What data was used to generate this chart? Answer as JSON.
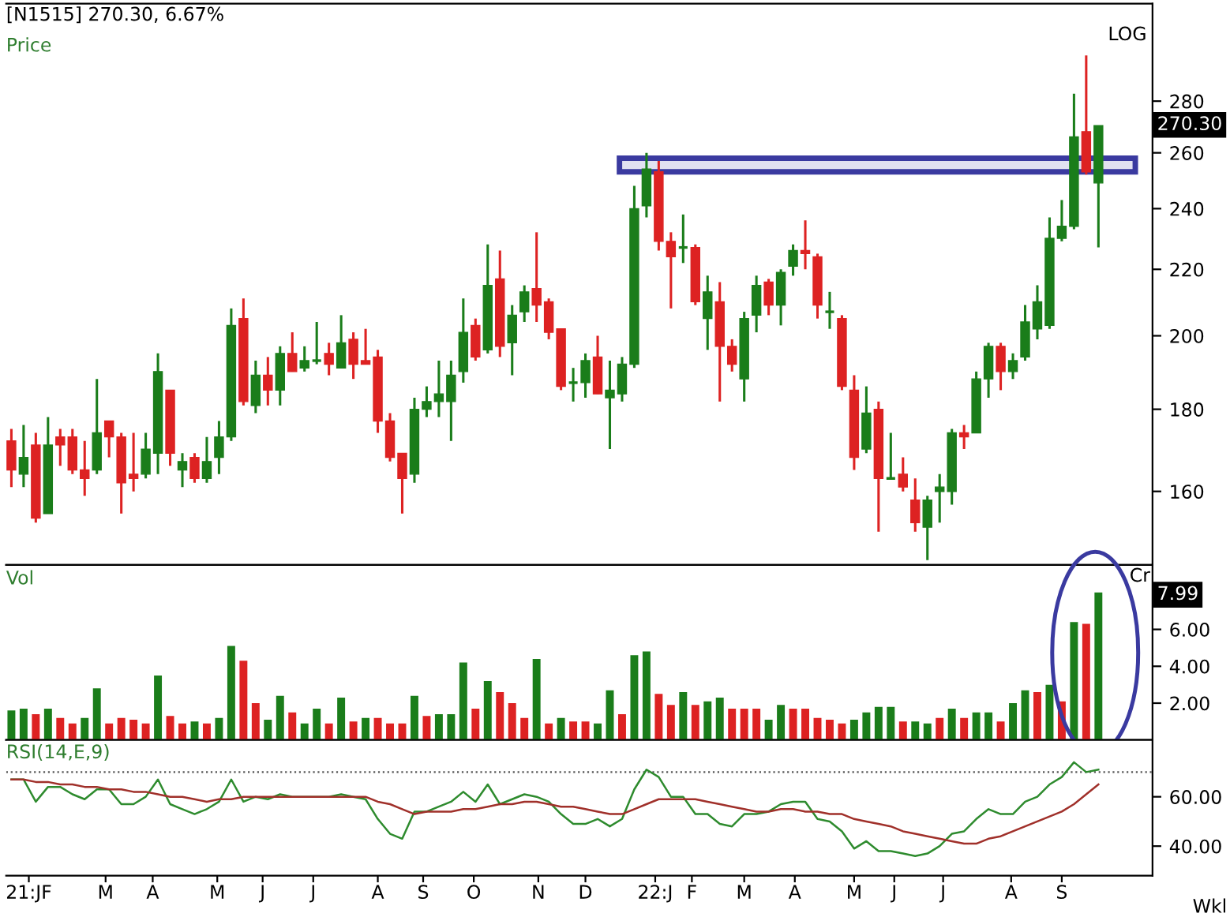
{
  "chart_data": [
    {
      "type": "candlestick",
      "title": "[N1515] 270.30, 6.67%",
      "annotations": [
        "Price",
        "LOG",
        "270.30"
      ],
      "x": [
        "2021-01-18",
        "2021-01-25",
        "2021-02-01",
        "2021-02-08",
        "2021-02-15",
        "2021-02-22",
        "2021-03-01",
        "2021-03-08",
        "2021-03-15",
        "2021-03-22",
        "2021-03-29",
        "2021-04-05",
        "2021-04-12",
        "2021-04-19",
        "2021-04-26",
        "2021-05-03",
        "2021-05-10",
        "2021-05-17",
        "2021-05-24",
        "2021-05-31",
        "2021-06-07",
        "2021-06-14",
        "2021-06-21",
        "2021-06-28",
        "2021-07-05",
        "2021-07-12",
        "2021-07-19",
        "2021-07-26",
        "2021-08-02",
        "2021-08-09",
        "2021-08-16",
        "2021-08-23",
        "2021-08-30",
        "2021-09-06",
        "2021-09-13",
        "2021-09-20",
        "2021-09-27",
        "2021-10-04",
        "2021-10-11",
        "2021-10-18",
        "2021-10-25",
        "2021-11-01",
        "2021-11-08",
        "2021-11-15",
        "2021-11-22",
        "2021-11-29",
        "2021-12-06",
        "2021-12-13",
        "2021-12-20",
        "2021-12-27",
        "2022-01-03",
        "2022-01-10",
        "2022-01-17",
        "2022-01-24",
        "2022-01-31",
        "2022-02-07",
        "2022-02-14",
        "2022-02-21",
        "2022-02-28",
        "2022-03-07",
        "2022-03-14",
        "2022-03-21",
        "2022-03-28",
        "2022-04-04",
        "2022-04-11",
        "2022-04-18",
        "2022-04-25",
        "2022-05-02",
        "2022-05-09",
        "2022-05-16",
        "2022-05-23",
        "2022-05-30",
        "2022-06-06",
        "2022-06-13",
        "2022-06-20",
        "2022-06-27",
        "2022-07-04",
        "2022-07-11",
        "2022-07-18",
        "2022-07-25",
        "2022-08-01",
        "2022-08-08",
        "2022-08-15",
        "2022-08-22",
        "2022-08-29",
        "2022-09-05",
        "2022-09-12",
        "2022-09-19",
        "2022-09-26",
        "2022-10-03"
      ],
      "ohlc": [
        [
          172,
          175,
          161,
          165
        ],
        [
          164,
          176,
          161,
          168
        ],
        [
          171,
          174,
          153,
          154
        ],
        [
          155,
          178,
          155,
          171
        ],
        [
          173,
          175,
          166,
          171
        ],
        [
          173,
          175,
          164,
          165
        ],
        [
          165,
          172,
          159,
          163
        ],
        [
          165,
          188,
          164,
          174
        ],
        [
          177,
          177,
          168,
          173
        ],
        [
          173,
          174,
          155,
          162
        ],
        [
          164,
          174,
          160,
          163
        ],
        [
          164,
          174,
          163,
          170
        ],
        [
          169,
          195,
          164,
          190
        ],
        [
          185,
          185,
          166,
          169
        ],
        [
          165,
          169,
          161,
          167
        ],
        [
          168,
          169,
          162,
          163
        ],
        [
          163,
          173,
          162,
          167
        ],
        [
          168,
          177,
          164,
          173
        ],
        [
          173,
          208,
          172,
          203
        ],
        [
          205,
          211,
          181,
          182
        ],
        [
          181,
          193,
          179,
          189
        ],
        [
          189,
          194,
          181,
          185
        ],
        [
          185,
          197,
          181,
          195
        ],
        [
          195,
          201,
          190,
          190
        ],
        [
          191,
          197,
          190,
          193
        ],
        [
          193,
          204,
          192,
          193
        ],
        [
          195,
          198,
          189,
          192
        ],
        [
          191,
          206,
          191,
          198
        ],
        [
          199,
          201,
          188,
          192
        ],
        [
          193,
          202,
          192,
          192
        ],
        [
          194,
          196,
          174,
          177
        ],
        [
          177,
          179,
          167,
          168
        ],
        [
          169,
          169,
          155,
          163
        ],
        [
          164,
          183,
          162,
          180
        ],
        [
          180,
          186,
          178,
          182
        ],
        [
          182,
          193,
          178,
          184
        ],
        [
          182,
          193,
          172,
          189
        ],
        [
          190,
          211,
          187,
          201
        ],
        [
          203,
          205,
          193,
          194
        ],
        [
          196,
          228,
          195,
          215
        ],
        [
          217,
          226,
          194,
          197
        ],
        [
          198,
          209,
          189,
          206
        ],
        [
          207,
          215,
          204,
          213
        ],
        [
          214,
          232,
          204,
          209
        ],
        [
          210,
          211,
          199,
          201
        ],
        [
          202,
          202,
          185,
          186
        ],
        [
          187,
          191,
          182,
          187
        ],
        [
          187,
          195,
          183,
          193
        ],
        [
          194,
          200,
          184,
          184
        ],
        [
          183,
          193,
          170,
          185
        ],
        [
          184,
          194,
          182,
          192
        ],
        [
          192,
          248,
          191,
          240
        ],
        [
          241,
          260,
          237,
          254
        ],
        [
          253,
          257,
          226,
          229
        ],
        [
          229,
          232,
          208,
          224
        ],
        [
          227,
          238,
          222,
          227
        ],
        [
          227,
          228,
          209,
          210
        ],
        [
          205,
          218,
          196,
          213
        ],
        [
          210,
          216,
          182,
          197
        ],
        [
          197,
          199,
          190,
          192
        ],
        [
          188,
          207,
          182,
          205
        ],
        [
          206,
          218,
          201,
          215
        ],
        [
          216,
          217,
          206,
          209
        ],
        [
          209,
          220,
          203,
          219
        ],
        [
          221,
          228,
          218,
          226
        ],
        [
          226,
          236,
          220,
          225
        ],
        [
          224,
          225,
          205,
          209
        ],
        [
          207,
          213,
          202,
          207
        ],
        [
          205,
          206,
          185,
          186
        ],
        [
          185,
          189,
          165,
          168
        ],
        [
          170,
          186,
          169,
          179
        ],
        [
          180,
          182,
          151,
          163
        ],
        [
          163,
          174,
          163,
          163
        ],
        [
          164,
          168,
          160,
          161
        ],
        [
          158,
          163,
          151,
          153
        ],
        [
          152,
          159,
          145,
          158
        ],
        [
          160,
          164,
          153,
          161
        ],
        [
          160,
          175,
          157,
          174
        ],
        [
          174,
          176,
          170,
          173
        ],
        [
          174,
          190,
          174,
          188
        ],
        [
          188,
          198,
          183,
          197
        ],
        [
          197,
          198,
          185,
          190
        ],
        [
          190,
          195,
          188,
          193
        ],
        [
          194,
          209,
          193,
          204
        ],
        [
          202,
          215,
          199,
          210
        ],
        [
          203,
          237,
          202,
          230
        ],
        [
          230,
          243,
          229,
          234
        ],
        [
          234,
          283,
          233,
          266
        ],
        [
          268,
          299,
          252,
          253
        ],
        [
          249,
          270.3,
          227,
          270.3
        ]
      ],
      "colors": [
        "#dd2222",
        "#1a7d1a",
        "#dd2222",
        "#1a7d1a",
        "#dd2222",
        "#dd2222",
        "#dd2222",
        "#1a7d1a",
        "#dd2222",
        "#dd2222",
        "#dd2222",
        "#1a7d1a",
        "#1a7d1a",
        "#dd2222",
        "#1a7d1a",
        "#dd2222",
        "#1a7d1a",
        "#1a7d1a",
        "#1a7d1a",
        "#dd2222",
        "#1a7d1a",
        "#dd2222",
        "#1a7d1a",
        "#dd2222",
        "#1a7d1a",
        "#1a7d1a",
        "#dd2222",
        "#1a7d1a",
        "#dd2222",
        "#dd2222",
        "#dd2222",
        "#dd2222",
        "#dd2222",
        "#1a7d1a",
        "#1a7d1a",
        "#1a7d1a",
        "#1a7d1a",
        "#1a7d1a",
        "#dd2222",
        "#1a7d1a",
        "#dd2222",
        "#1a7d1a",
        "#1a7d1a",
        "#dd2222",
        "#dd2222",
        "#dd2222",
        "#1a7d1a",
        "#1a7d1a",
        "#dd2222",
        "#1a7d1a",
        "#1a7d1a",
        "#1a7d1a",
        "#1a7d1a",
        "#dd2222",
        "#dd2222",
        "#1a7d1a",
        "#dd2222",
        "#1a7d1a",
        "#dd2222",
        "#dd2222",
        "#1a7d1a",
        "#1a7d1a",
        "#dd2222",
        "#1a7d1a",
        "#1a7d1a",
        "#dd2222",
        "#dd2222",
        "#1a7d1a",
        "#dd2222",
        "#dd2222",
        "#1a7d1a",
        "#dd2222",
        "#1a7d1a",
        "#dd2222",
        "#dd2222",
        "#1a7d1a",
        "#1a7d1a",
        "#1a7d1a",
        "#dd2222",
        "#1a7d1a",
        "#1a7d1a",
        "#dd2222",
        "#1a7d1a",
        "#1a7d1a",
        "#1a7d1a",
        "#1a7d1a",
        "#1a7d1a",
        "#1a7d1a",
        "#dd2222",
        "#1a7d1a"
      ],
      "xlim": [
        "2021-01-15",
        "2022-11-03"
      ],
      "log": "y",
      "ylim": [
        144,
        322
      ],
      "yticks": [
        160,
        180,
        200,
        220,
        240,
        260,
        280
      ],
      "bands": [
        {
          "axis": "y",
          "from": 253,
          "to": 258,
          "color": "#3a3aa0"
        }
      ],
      "tick_labels": "y",
      "grid": false
    },
    {
      "type": "bar",
      "annotations": [
        "Vol",
        "Cr",
        "7.99"
      ],
      "x": [
        "2021-01-18",
        "2021-01-25",
        "2021-02-01",
        "2021-02-08",
        "2021-02-15",
        "2021-02-22",
        "2021-03-01",
        "2021-03-08",
        "2021-03-15",
        "2021-03-22",
        "2021-03-29",
        "2021-04-05",
        "2021-04-12",
        "2021-04-19",
        "2021-04-26",
        "2021-05-03",
        "2021-05-10",
        "2021-05-17",
        "2021-05-24",
        "2021-05-31",
        "2021-06-07",
        "2021-06-14",
        "2021-06-21",
        "2021-06-28",
        "2021-07-05",
        "2021-07-12",
        "2021-07-19",
        "2021-07-26",
        "2021-08-02",
        "2021-08-09",
        "2021-08-16",
        "2021-08-23",
        "2021-08-30",
        "2021-09-06",
        "2021-09-13",
        "2021-09-20",
        "2021-09-27",
        "2021-10-04",
        "2021-10-11",
        "2021-10-18",
        "2021-10-25",
        "2021-11-01",
        "2021-11-08",
        "2021-11-15",
        "2021-11-22",
        "2021-11-29",
        "2021-12-06",
        "2021-12-13",
        "2021-12-20",
        "2021-12-27",
        "2022-01-03",
        "2022-01-10",
        "2022-01-17",
        "2022-01-24",
        "2022-01-31",
        "2022-02-07",
        "2022-02-14",
        "2022-02-21",
        "2022-02-28",
        "2022-03-07",
        "2022-03-14",
        "2022-03-21",
        "2022-03-28",
        "2022-04-04",
        "2022-04-11",
        "2022-04-18",
        "2022-04-25",
        "2022-05-02",
        "2022-05-09",
        "2022-05-16",
        "2022-05-23",
        "2022-05-30",
        "2022-06-06",
        "2022-06-13",
        "2022-06-20",
        "2022-06-27",
        "2022-07-04",
        "2022-07-11",
        "2022-07-18",
        "2022-07-25",
        "2022-08-01",
        "2022-08-08",
        "2022-08-15",
        "2022-08-22",
        "2022-08-29",
        "2022-09-05",
        "2022-09-12",
        "2022-09-19",
        "2022-09-26",
        "2022-10-03"
      ],
      "values": [
        1.6,
        1.7,
        1.4,
        1.7,
        1.2,
        0.9,
        1.2,
        2.8,
        0.9,
        1.2,
        1.1,
        0.9,
        3.5,
        1.3,
        0.9,
        1.0,
        0.9,
        1.2,
        5.1,
        4.3,
        2.0,
        1.1,
        2.4,
        1.5,
        0.9,
        1.7,
        0.9,
        2.3,
        1.0,
        1.2,
        1.2,
        0.9,
        0.9,
        2.4,
        1.3,
        1.4,
        1.4,
        4.2,
        1.7,
        3.2,
        2.6,
        2.0,
        1.2,
        4.4,
        0.9,
        1.2,
        1.0,
        1.0,
        0.9,
        2.7,
        1.4,
        4.6,
        4.8,
        2.5,
        1.9,
        2.6,
        1.9,
        2.1,
        2.3,
        1.7,
        1.7,
        1.7,
        1.1,
        1.9,
        1.7,
        1.7,
        1.2,
        1.1,
        0.9,
        1.1,
        1.5,
        1.8,
        1.8,
        1.0,
        1.0,
        0.9,
        1.2,
        1.7,
        1.2,
        1.5,
        1.5,
        1.0,
        2.0,
        2.7,
        2.6,
        3.0,
        2.1,
        6.4,
        6.3,
        8.0
      ],
      "colors": [
        "#1a7d1a",
        "#1a7d1a",
        "#dd2222",
        "#1a7d1a",
        "#dd2222",
        "#dd2222",
        "#1a7d1a",
        "#1a7d1a",
        "#dd2222",
        "#dd2222",
        "#dd2222",
        "#dd2222",
        "#1a7d1a",
        "#dd2222",
        "#dd2222",
        "#1a7d1a",
        "#dd2222",
        "#1a7d1a",
        "#1a7d1a",
        "#dd2222",
        "#dd2222",
        "#1a7d1a",
        "#1a7d1a",
        "#dd2222",
        "#1a7d1a",
        "#1a7d1a",
        "#dd2222",
        "#1a7d1a",
        "#dd2222",
        "#1a7d1a",
        "#dd2222",
        "#dd2222",
        "#dd2222",
        "#1a7d1a",
        "#dd2222",
        "#1a7d1a",
        "#1a7d1a",
        "#1a7d1a",
        "#dd2222",
        "#1a7d1a",
        "#dd2222",
        "#dd2222",
        "#dd2222",
        "#1a7d1a",
        "#dd2222",
        "#1a7d1a",
        "#dd2222",
        "#dd2222",
        "#1a7d1a",
        "#1a7d1a",
        "#dd2222",
        "#1a7d1a",
        "#1a7d1a",
        "#dd2222",
        "#dd2222",
        "#1a7d1a",
        "#dd2222",
        "#1a7d1a",
        "#1a7d1a",
        "#dd2222",
        "#dd2222",
        "#dd2222",
        "#1a7d1a",
        "#1a7d1a",
        "#dd2222",
        "#dd2222",
        "#dd2222",
        "#dd2222",
        "#dd2222",
        "#1a7d1a",
        "#1a7d1a",
        "#1a7d1a",
        "#1a7d1a",
        "#dd2222",
        "#1a7d1a",
        "#1a7d1a",
        "#dd2222",
        "#1a7d1a",
        "#dd2222",
        "#1a7d1a",
        "#1a7d1a",
        "#dd2222",
        "#1a7d1a",
        "#1a7d1a",
        "#dd2222",
        "#1a7d1a",
        "#dd2222",
        "#1a7d1a",
        "#dd2222",
        "#1a7d1a"
      ],
      "xlim": [
        "2021-01-15",
        "2022-11-03"
      ],
      "ylim": [
        0,
        9.5
      ],
      "yticks": [
        {
          "value": 2,
          "label": "2.00"
        },
        {
          "value": 4,
          "label": "4.00"
        },
        {
          "value": 6,
          "label": "6.00"
        }
      ],
      "tick_labels": "y",
      "grid": false
    },
    {
      "type": "line",
      "annotations": [
        "RSI(14,E,9)",
        "Wkl"
      ],
      "x": [
        "2021-01-18",
        "2021-01-25",
        "2021-02-01",
        "2021-02-08",
        "2021-02-15",
        "2021-02-22",
        "2021-03-01",
        "2021-03-08",
        "2021-03-15",
        "2021-03-22",
        "2021-03-29",
        "2021-04-05",
        "2021-04-12",
        "2021-04-19",
        "2021-04-26",
        "2021-05-03",
        "2021-05-10",
        "2021-05-17",
        "2021-05-24",
        "2021-05-31",
        "2021-06-07",
        "2021-06-14",
        "2021-06-21",
        "2021-06-28",
        "2021-07-05",
        "2021-07-12",
        "2021-07-19",
        "2021-07-26",
        "2021-08-02",
        "2021-08-09",
        "2021-08-16",
        "2021-08-23",
        "2021-08-30",
        "2021-09-06",
        "2021-09-13",
        "2021-09-20",
        "2021-09-27",
        "2021-10-04",
        "2021-10-11",
        "2021-10-18",
        "2021-10-25",
        "2021-11-01",
        "2021-11-08",
        "2021-11-15",
        "2021-11-22",
        "2021-11-29",
        "2021-12-06",
        "2021-12-13",
        "2021-12-20",
        "2021-12-27",
        "2022-01-03",
        "2022-01-10",
        "2022-01-17",
        "2022-01-24",
        "2022-01-31",
        "2022-02-07",
        "2022-02-14",
        "2022-02-21",
        "2022-02-28",
        "2022-03-07",
        "2022-03-14",
        "2022-03-21",
        "2022-03-28",
        "2022-04-04",
        "2022-04-11",
        "2022-04-18",
        "2022-04-25",
        "2022-05-02",
        "2022-05-09",
        "2022-05-16",
        "2022-05-23",
        "2022-05-30",
        "2022-06-06",
        "2022-06-13",
        "2022-06-20",
        "2022-06-27",
        "2022-07-04",
        "2022-07-11",
        "2022-07-18",
        "2022-07-25",
        "2022-08-01",
        "2022-08-08",
        "2022-08-15",
        "2022-08-22",
        "2022-08-29",
        "2022-09-05",
        "2022-09-12",
        "2022-09-19",
        "2022-09-26",
        "2022-10-03"
      ],
      "series": [
        {
          "color": "#2e8b2e",
          "values": [
            67,
            67,
            58,
            64,
            64,
            61,
            59,
            63,
            63,
            57,
            57,
            60,
            67,
            57,
            55,
            53,
            55,
            58,
            67,
            58,
            60,
            59,
            61,
            60,
            60,
            60,
            60,
            61,
            60,
            59,
            51,
            45,
            43,
            54,
            54,
            56,
            58,
            62,
            58,
            65,
            57,
            59,
            61,
            60,
            58,
            53,
            49,
            49,
            51,
            48,
            51,
            63,
            71,
            68,
            60,
            60,
            53,
            53,
            49,
            48,
            53,
            53,
            54,
            57,
            58,
            58,
            51,
            50,
            46,
            39,
            42,
            38,
            38,
            37,
            36,
            37,
            40,
            45,
            46,
            51,
            55,
            53,
            53,
            58,
            60,
            65,
            68,
            74,
            70,
            71
          ]
        },
        {
          "color": "#a0302a",
          "values": [
            67,
            67,
            66,
            66,
            65,
            65,
            64,
            64,
            63,
            63,
            62,
            62,
            61,
            60,
            60,
            59,
            58,
            59,
            59,
            60,
            60,
            60,
            60,
            60,
            60,
            60,
            60,
            60,
            60,
            60,
            58,
            57,
            55,
            53,
            54,
            54,
            54,
            55,
            55,
            56,
            57,
            57,
            58,
            58,
            57,
            56,
            56,
            55,
            54,
            53,
            53,
            55,
            57,
            59,
            59,
            59,
            59,
            58,
            57,
            56,
            55,
            54,
            54,
            55,
            55,
            54,
            54,
            53,
            53,
            51,
            50,
            49,
            48,
            46,
            45,
            44,
            43,
            42,
            41,
            41,
            43,
            44,
            46,
            48,
            50,
            52,
            54,
            57,
            61,
            65
          ]
        }
      ],
      "xlim": [
        "2021-01-15",
        "2022-11-03"
      ],
      "ylim": [
        28,
        83
      ],
      "yticks": [
        {
          "value": 40,
          "label": "40.00"
        },
        {
          "value": 60,
          "label": "60.00"
        }
      ],
      "xticks": [
        {
          "value": "2021-01-28",
          "label": "21:JF"
        },
        {
          "value": "2021-03-13",
          "label": "M"
        },
        {
          "value": "2021-04-09",
          "label": "A"
        },
        {
          "value": "2021-05-16",
          "label": "M"
        },
        {
          "value": "2021-06-11",
          "label": "J"
        },
        {
          "value": "2021-07-10",
          "label": "J"
        },
        {
          "value": "2021-08-16",
          "label": "A"
        },
        {
          "value": "2021-09-11",
          "label": "S"
        },
        {
          "value": "2021-10-10",
          "label": "O"
        },
        {
          "value": "2021-11-16",
          "label": "N"
        },
        {
          "value": "2021-12-13",
          "label": "D"
        },
        {
          "value": "2022-01-22",
          "label": "22:J"
        },
        {
          "value": "2022-02-12",
          "label": "F"
        },
        {
          "value": "2022-03-14",
          "label": "M"
        },
        {
          "value": "2022-04-12",
          "label": "A"
        },
        {
          "value": "2022-05-16",
          "label": "M"
        },
        {
          "value": "2022-06-08",
          "label": "J"
        },
        {
          "value": "2022-07-06",
          "label": "J"
        },
        {
          "value": "2022-08-14",
          "label": "A"
        },
        {
          "value": "2022-09-12",
          "label": "S"
        }
      ],
      "ref_lines": [
        {
          "axis": "y",
          "value": 70,
          "color": "#555555",
          "line_style": "dotted"
        }
      ],
      "grid": false
    }
  ]
}
